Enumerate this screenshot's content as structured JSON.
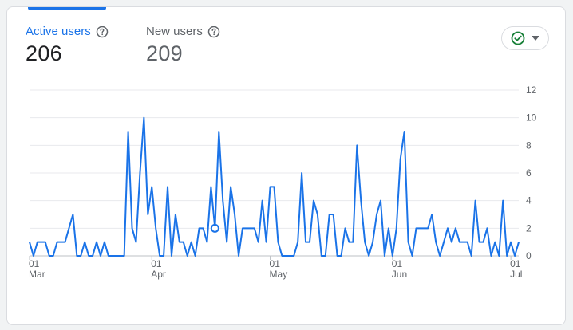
{
  "metrics": {
    "active_label": "Active users",
    "active_value": "206",
    "new_label": "New users",
    "new_value": "209"
  },
  "colors": {
    "accent": "#1a73e8",
    "status_green": "#188038",
    "grid": "#e8eaed"
  },
  "status_button": {
    "icon": "check-circle-icon",
    "dropdown_icon": "caret-down-icon"
  },
  "chart_data": {
    "type": "line",
    "title": "",
    "xlabel": "",
    "ylabel": "",
    "ylim": [
      0,
      12
    ],
    "y_ticks": [
      "0",
      "2",
      "4",
      "6",
      "8",
      "10",
      "12"
    ],
    "x_ticks": [
      {
        "day": "01",
        "month": "Mar",
        "index": 0
      },
      {
        "day": "01",
        "month": "Apr",
        "index": 31
      },
      {
        "day": "01",
        "month": "May",
        "index": 61
      },
      {
        "day": "01",
        "month": "Jun",
        "index": 92
      },
      {
        "day": "01",
        "month": "Jul",
        "index": 122
      }
    ],
    "grid": true,
    "highlighted_index": 47,
    "series": [
      {
        "values": [
          1,
          0,
          1,
          1,
          1,
          0,
          0,
          1,
          1,
          1,
          2,
          3,
          0,
          0,
          1,
          0,
          0,
          1,
          0,
          1,
          0,
          0,
          0,
          0,
          0,
          9,
          2,
          1,
          6,
          10,
          3,
          5,
          2,
          0,
          0,
          5,
          0,
          3,
          1,
          1,
          0,
          1,
          0,
          2,
          2,
          1,
          5,
          2,
          9,
          4,
          1,
          5,
          3,
          0,
          2,
          2,
          2,
          2,
          1,
          4,
          1,
          5,
          5,
          1,
          0,
          0,
          0,
          0,
          1,
          6,
          1,
          1,
          4,
          3,
          0,
          0,
          3,
          3,
          0,
          0,
          2,
          1,
          1,
          8,
          4,
          1,
          0,
          1,
          3,
          4,
          0,
          2,
          0,
          2,
          7,
          9,
          1,
          0,
          2,
          2,
          2,
          2,
          3,
          1,
          0,
          1,
          2,
          1,
          2,
          1,
          1,
          1,
          0,
          4,
          1,
          1,
          2,
          0,
          1,
          0,
          4,
          0,
          1,
          0,
          1
        ]
      }
    ]
  }
}
